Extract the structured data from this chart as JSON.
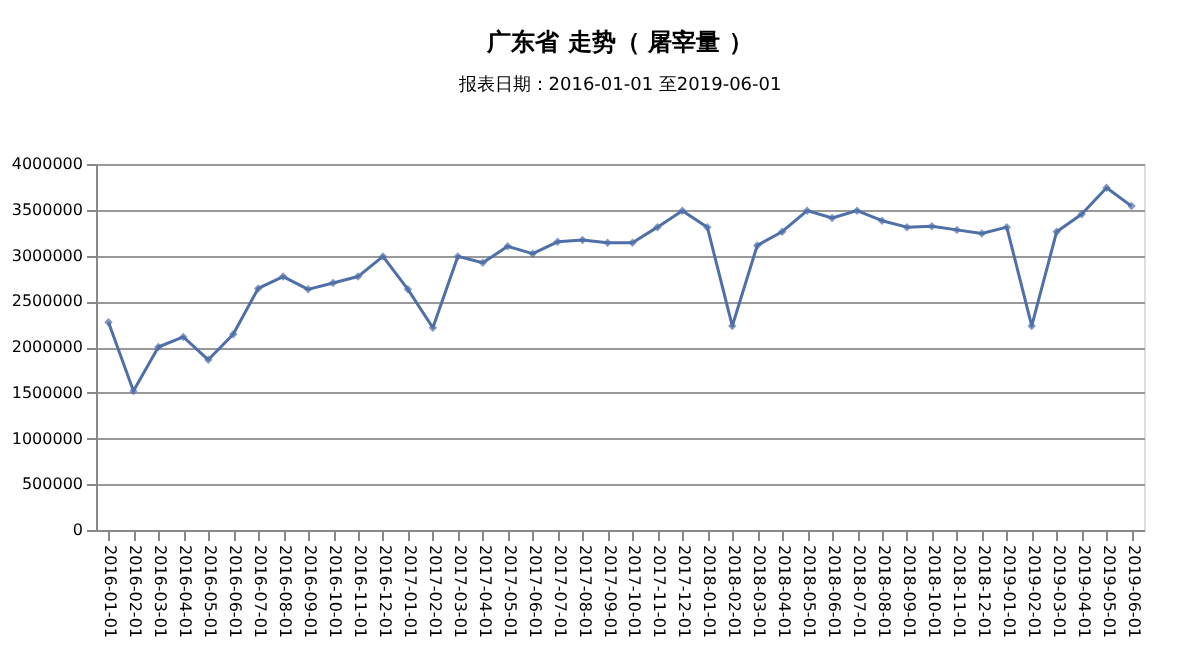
{
  "chart_data": {
    "type": "line",
    "title": "广东省 走势（ 屠宰量 ）",
    "subtitle": "报表日期：2016-01-01 至2019-06-01",
    "categories": [
      "2016-01-01",
      "2016-02-01",
      "2016-03-01",
      "2016-04-01",
      "2016-05-01",
      "2016-06-01",
      "2016-07-01",
      "2016-08-01",
      "2016-09-01",
      "2016-10-01",
      "2016-11-01",
      "2016-12-01",
      "2017-01-01",
      "2017-02-01",
      "2017-03-01",
      "2017-04-01",
      "2017-05-01",
      "2017-06-01",
      "2017-07-01",
      "2017-08-01",
      "2017-09-01",
      "2017-10-01",
      "2017-11-01",
      "2017-12-01",
      "2018-01-01",
      "2018-02-01",
      "2018-03-01",
      "2018-04-01",
      "2018-05-01",
      "2018-06-01",
      "2018-07-01",
      "2018-08-01",
      "2018-09-01",
      "2018-10-01",
      "2018-11-01",
      "2018-12-01",
      "2019-01-01",
      "2019-02-01",
      "2019-03-01",
      "2019-04-01",
      "2019-05-01",
      "2019-06-01"
    ],
    "series": [
      {
        "color": "#4f6fa8",
        "values": [
          2270000,
          1520000,
          2000000,
          2110000,
          1860000,
          2140000,
          2640000,
          2770000,
          2630000,
          2700000,
          2770000,
          2990000,
          2630000,
          2210000,
          2990000,
          2920000,
          3100000,
          3020000,
          3150000,
          3170000,
          3140000,
          3140000,
          3310000,
          3490000,
          3310000,
          2230000,
          3110000,
          3260000,
          3490000,
          3410000,
          3490000,
          3380000,
          3310000,
          3320000,
          3280000,
          3240000,
          3310000,
          2230000,
          3260000,
          3450000,
          3740000,
          3540000
        ]
      }
    ],
    "ylim": [
      0,
      4000000
    ],
    "yticks": [
      0,
      500000,
      1000000,
      1500000,
      2000000,
      2500000,
      3000000,
      3500000,
      4000000
    ],
    "grid": "y",
    "legend": false,
    "marker": "diamond",
    "line_style": "solid"
  }
}
